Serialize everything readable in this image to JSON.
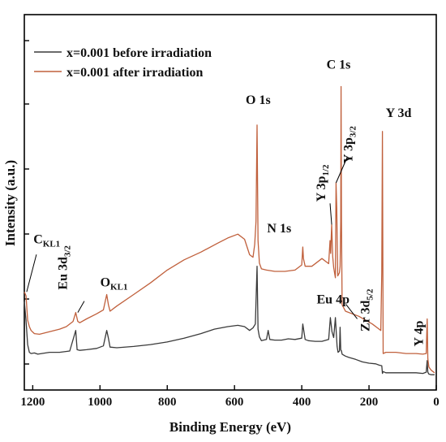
{
  "chart_data": {
    "type": "line",
    "xlabel": "Binding Energy (eV)",
    "ylabel": "Intensity (a.u.)",
    "xlim": [
      1225,
      0
    ],
    "x_reversed": true,
    "x_ticks": [
      1200,
      1000,
      800,
      600,
      400,
      200,
      0
    ],
    "y_tick_labels": false,
    "legend": {
      "position": "top-left"
    },
    "series": [
      {
        "name": "x=0.001 before irradiation",
        "color": "#3a3a3a",
        "x": [
          1225,
          1220,
          1215,
          1210,
          1205,
          1195,
          1185,
          1150,
          1120,
          1090,
          1072,
          1068,
          1060,
          1040,
          1010,
          990,
          980,
          975,
          970,
          950,
          900,
          850,
          800,
          750,
          700,
          660,
          620,
          590,
          570,
          555,
          545,
          538,
          533,
          530,
          526,
          520,
          505,
          500,
          495,
          480,
          460,
          440,
          420,
          400,
          397,
          390,
          380,
          360,
          340,
          320,
          315,
          310,
          305,
          300,
          295,
          292,
          288,
          286,
          284,
          282,
          280,
          270,
          260,
          240,
          220,
          200,
          180,
          170,
          162,
          160,
          158,
          150,
          120,
          90,
          60,
          40,
          30,
          27,
          25,
          22,
          15,
          10,
          5
        ],
        "y": [
          11.5,
          8.5,
          4.8,
          3.6,
          3.4,
          3.5,
          3.3,
          3.6,
          3.6,
          3.8,
          7.0,
          4.0,
          3.9,
          4.0,
          4.2,
          4.6,
          7.0,
          5.8,
          4.4,
          4.3,
          4.5,
          4.8,
          5.2,
          5.8,
          6.5,
          7.2,
          7.6,
          7.8,
          7.6,
          7.0,
          7.4,
          8.0,
          17.0,
          7.2,
          6.0,
          5.4,
          5.6,
          7.0,
          5.6,
          5.5,
          5.5,
          5.7,
          5.6,
          5.8,
          8.0,
          5.6,
          5.4,
          5.3,
          5.3,
          5.6,
          9.0,
          6.8,
          5.9,
          9.0,
          4.5,
          3.6,
          3.8,
          7.5,
          4.0,
          3.8,
          3.3,
          3.0,
          2.8,
          2.5,
          2.1,
          1.9,
          1.8,
          1.6,
          1.5,
          0.3,
          0.6,
          0.4,
          0.4,
          0.4,
          0.4,
          0.3,
          0.5,
          2.3,
          0.5,
          0.2,
          0.1,
          0.1,
          0.1
        ]
      },
      {
        "name": "x=0.001 after irradiation",
        "color": "#c0603c",
        "x": [
          1225,
          1220,
          1215,
          1210,
          1205,
          1195,
          1180,
          1150,
          1120,
          1100,
          1080,
          1072,
          1066,
          1060,
          1040,
          1010,
          990,
          980,
          975,
          970,
          950,
          900,
          850,
          800,
          750,
          700,
          650,
          620,
          590,
          570,
          555,
          545,
          540,
          536,
          533,
          530,
          526,
          520,
          505,
          480,
          450,
          420,
          400,
          397,
          395,
          390,
          370,
          340,
          320,
          316,
          314,
          311,
          308,
          305,
          300,
          298,
          296,
          293,
          288,
          286,
          284,
          283,
          282,
          280,
          270,
          250,
          230,
          210,
          190,
          175,
          165,
          162,
          160,
          158,
          150,
          120,
          90,
          60,
          40,
          30,
          27,
          25,
          22,
          15,
          10,
          5
        ],
        "y": [
          13.0,
          12.4,
          8.6,
          7.6,
          7.0,
          6.5,
          6.4,
          6.8,
          7.2,
          7.6,
          8.4,
          9.8,
          8.4,
          8.2,
          8.8,
          9.6,
          10.2,
          12.6,
          11.0,
          10.0,
          10.8,
          12.6,
          14.4,
          16.4,
          18.0,
          19.2,
          20.6,
          21.4,
          22.0,
          21.2,
          18.8,
          18.4,
          20.4,
          24.0,
          39.0,
          21.0,
          17.5,
          16.6,
          16.4,
          16.2,
          16.2,
          16.4,
          17.2,
          20.0,
          18.2,
          17.0,
          17.0,
          18.2,
          17.4,
          21.0,
          19.0,
          23.5,
          18.5,
          16.8,
          15.2,
          30.0,
          26.0,
          15.5,
          16.0,
          17.0,
          24.0,
          45.0,
          24.0,
          11.0,
          10.0,
          9.6,
          9.2,
          8.6,
          8.0,
          7.4,
          7.0,
          16.0,
          38.0,
          3.4,
          3.6,
          3.6,
          3.4,
          3.4,
          3.3,
          3.4,
          8.8,
          2.6,
          1.3,
          0.8,
          0.6,
          0.4
        ]
      }
    ],
    "annotations": [
      {
        "id": "ckl1",
        "main": "C",
        "sub": "KL1",
        "x": 1222,
        "y": 13.0
      },
      {
        "id": "eu3d",
        "main": "Eu 3d",
        "sub": "3/2",
        "x": 1070,
        "y": 9.8
      },
      {
        "id": "okl1",
        "main": "O",
        "sub": "KL1",
        "x": 980,
        "y": 12.6
      },
      {
        "id": "o1s",
        "main": "O 1s",
        "sub": "",
        "x": 533,
        "y": 39.0
      },
      {
        "id": "n1s",
        "main": "N 1s",
        "sub": "",
        "x": 397,
        "y": 20.0
      },
      {
        "id": "y3p12",
        "main": "Y 3p",
        "sub": "1/2",
        "x": 311,
        "y": 23.5
      },
      {
        "id": "y3p32",
        "main": "Y 3p",
        "sub": "3/2",
        "x": 298,
        "y": 30.0
      },
      {
        "id": "c1s",
        "main": "C 1s",
        "sub": "",
        "x": 283,
        "y": 45.0
      },
      {
        "id": "eu4p",
        "main": "Eu 4p",
        "sub": "",
        "x": 240,
        "y": 9.4
      },
      {
        "id": "zr3d",
        "main": "Zr 3d",
        "sub": "5/2",
        "x": 185,
        "y": 7.6
      },
      {
        "id": "y3d",
        "main": "Y 3d",
        "sub": "",
        "x": 160,
        "y": 38.0
      },
      {
        "id": "y4p",
        "main": "Y 4p",
        "sub": "",
        "x": 25,
        "y": 8.8
      }
    ]
  }
}
